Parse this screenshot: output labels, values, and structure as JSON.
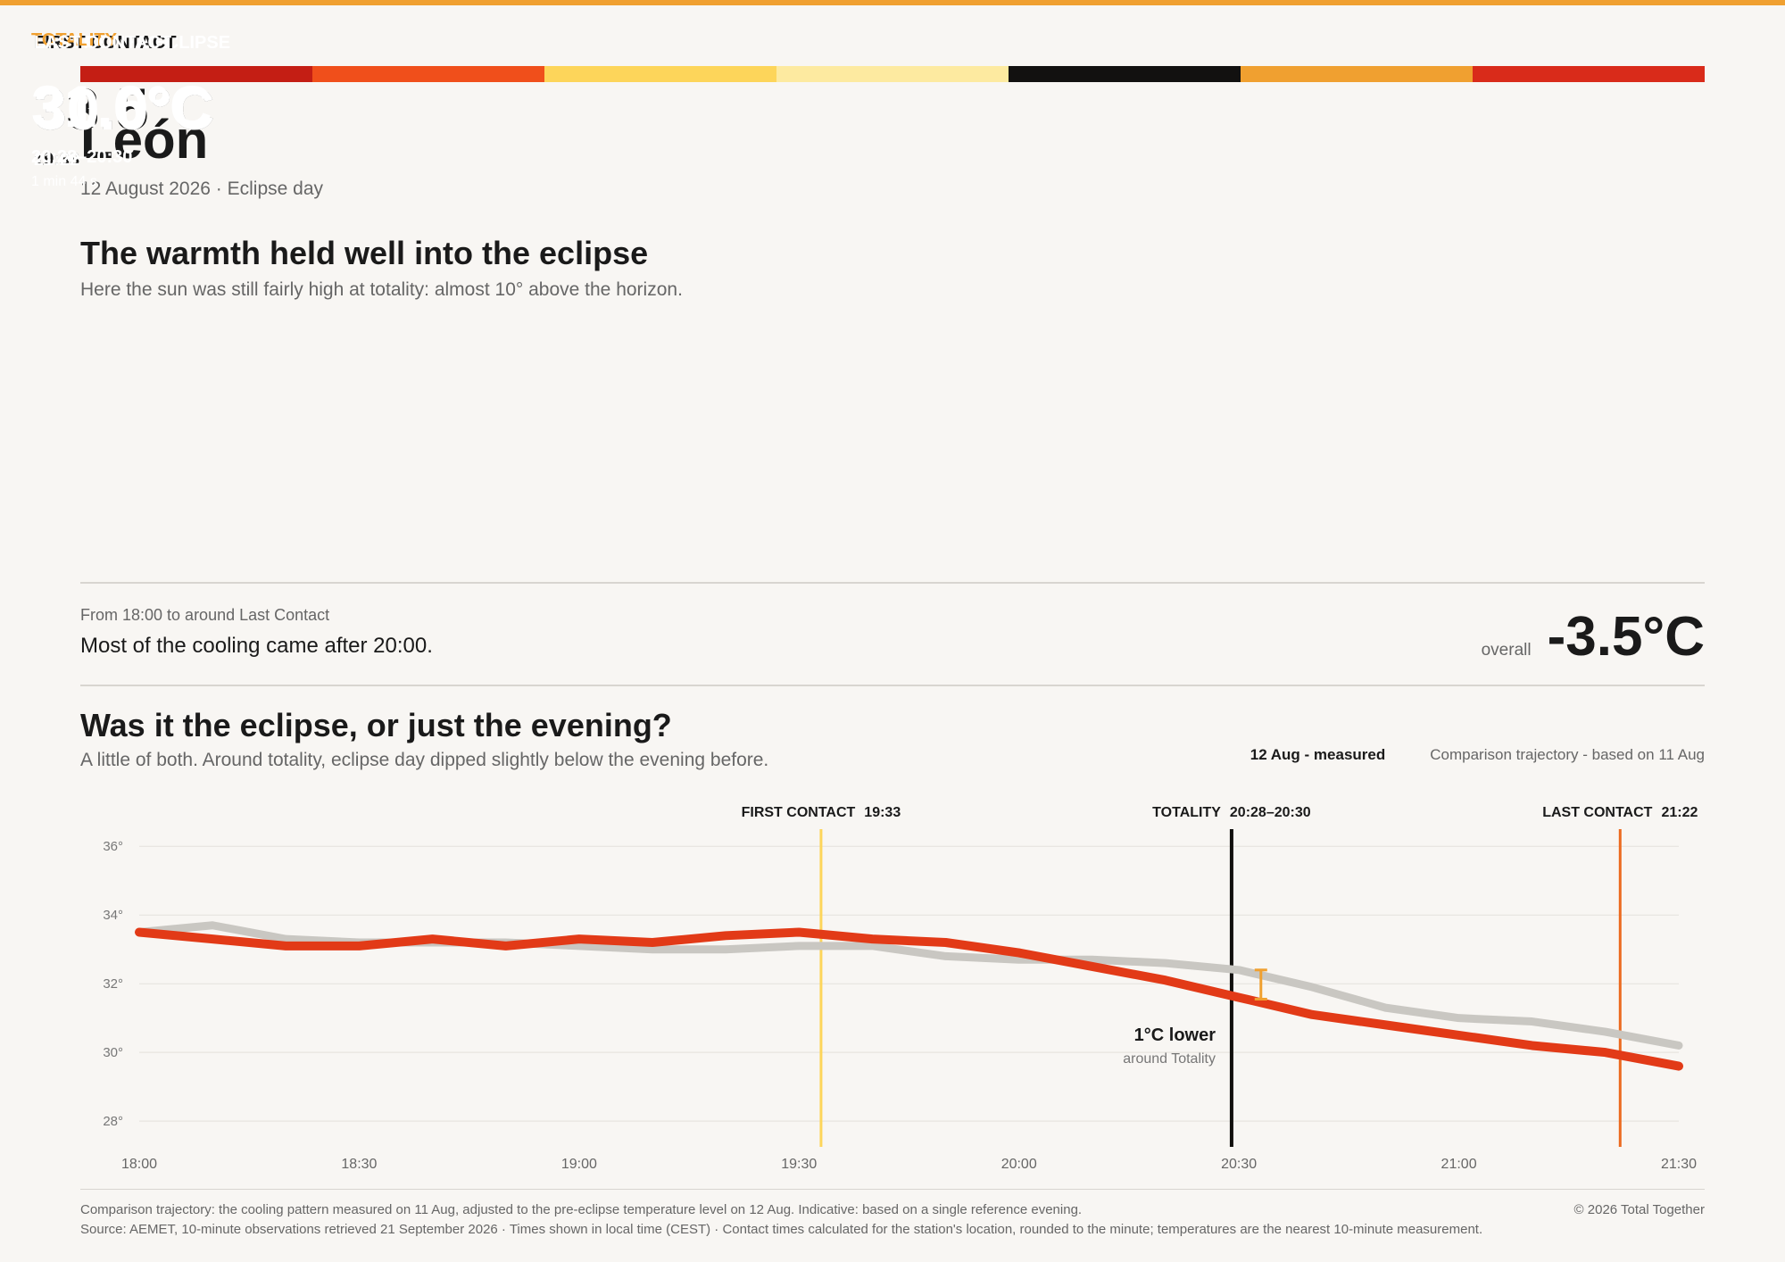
{
  "header": {
    "title": "León",
    "subtitle": "12 August 2026 · Eclipse day"
  },
  "intro": {
    "heading": "The warmth held well into the eclipse",
    "text": "Here the sun was still fairly high at totality: almost 10° above the horizon."
  },
  "cards": [
    {
      "label": "BEFORE THE ECLIPSE",
      "value": "33.5°C",
      "time": "18:00",
      "color": "#e23a17",
      "text_color": "#ffffff",
      "label_color": "#ffffff"
    },
    {
      "label": "FIRST CONTACT",
      "value": "33.5°C",
      "time": "19:33",
      "color": "#fdd55a",
      "text_color": "#1a1a1a",
      "label_color": "#1a1a1a"
    },
    {
      "label": "TOTALITY",
      "value": "31.6°C",
      "time": "20:28–20:30",
      "note": "1 min 44 s",
      "color": "#11100e",
      "text_color": "#ffffff",
      "label_color": "#f0a030",
      "border": "#f0a030"
    },
    {
      "label": "LAST CONTACT",
      "value": "30.0°C",
      "time": "21:22",
      "color": "#ec6a1f",
      "text_color": "#ffffff",
      "label_color": "#ffffff"
    }
  ],
  "summary": {
    "caption": "From 18:00 to around Last Contact",
    "text": "Most of the cooling came after 20:00.",
    "overall_label": "overall",
    "overall_value": "-3.5°C"
  },
  "chart_data": {
    "type": "line",
    "title": "Was it the eclipse, or just the evening?",
    "subtitle": "A little of both. Around totality, eclipse day dipped slightly below the evening before.",
    "x": [
      1080,
      1090,
      1100,
      1110,
      1120,
      1130,
      1140,
      1150,
      1160,
      1170,
      1180,
      1190,
      1200,
      1210,
      1220,
      1230,
      1240,
      1250,
      1260,
      1270,
      1280,
      1290
    ],
    "xlim": [
      1080,
      1290
    ],
    "xticks": [
      {
        "value": 1080,
        "label": "18:00"
      },
      {
        "value": 1110,
        "label": "18:30"
      },
      {
        "value": 1140,
        "label": "19:00"
      },
      {
        "value": 1170,
        "label": "19:30"
      },
      {
        "value": 1200,
        "label": "20:00"
      },
      {
        "value": 1230,
        "label": "20:30"
      },
      {
        "value": 1260,
        "label": "21:00"
      },
      {
        "value": 1290,
        "label": "21:30"
      }
    ],
    "ylim": [
      27.25,
      36.5
    ],
    "yticks": [
      {
        "value": 28,
        "label": "28°"
      },
      {
        "value": 30,
        "label": "30°"
      },
      {
        "value": 32,
        "label": "32°"
      },
      {
        "value": 34,
        "label": "34°"
      },
      {
        "value": 36,
        "label": "36°"
      }
    ],
    "grid": true,
    "legend": "top-right",
    "series": [
      {
        "name": "12 Aug - measured",
        "color": "#e23a17",
        "values": [
          33.5,
          33.3,
          33.1,
          33.1,
          33.3,
          33.1,
          33.3,
          33.2,
          33.4,
          33.5,
          33.3,
          33.2,
          32.9,
          32.5,
          32.1,
          31.6,
          31.1,
          30.8,
          30.5,
          30.2,
          30.0,
          29.6
        ]
      },
      {
        "name": "Comparison trajectory - based on 11 Aug",
        "color": "#c9c7c2",
        "values": [
          33.5,
          33.7,
          33.3,
          33.2,
          33.2,
          33.2,
          33.1,
          33.0,
          33.0,
          33.1,
          33.1,
          32.8,
          32.7,
          32.7,
          32.6,
          32.4,
          31.9,
          31.3,
          31.0,
          30.9,
          30.6,
          30.2
        ]
      }
    ],
    "markers": [
      {
        "label": "FIRST CONTACT",
        "time": "19:33",
        "x": [
          1173
        ],
        "color": "#fdd55a"
      },
      {
        "label": "TOTALITY",
        "time": "20:28–20:30",
        "x": [
          1228,
          1230
        ],
        "color": "#11100e"
      },
      {
        "label": "LAST CONTACT",
        "time": "21:22",
        "x": [
          1282
        ],
        "color": "#ec6a1f"
      }
    ],
    "annotation": {
      "text": "1°C lower",
      "subtext": "around Totality",
      "x": 1233,
      "range": [
        31.55,
        32.4
      ],
      "color": "#f0a030"
    }
  },
  "footer": {
    "notes": [
      "Comparison trajectory: the cooling pattern measured on 11 Aug, adjusted to the pre-eclipse temperature level on 12 Aug. Indicative: based on a single reference evening.",
      "Source: AEMET, 10-minute observations retrieved 21 September 2026 · Times shown in local time (CEST) · Contact times calculated for the station's location, rounded to the minute; temperatures are the nearest 10-minute measurement."
    ],
    "copyright": "© 2026 Total Together"
  }
}
